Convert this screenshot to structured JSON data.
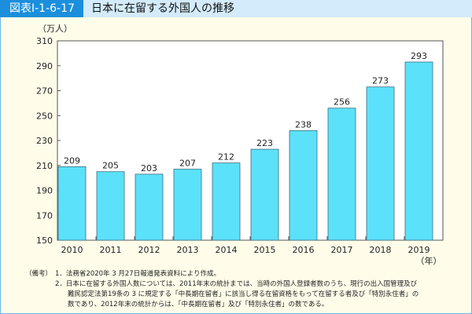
{
  "header": {
    "figure_id": "図表Ⅰ-1-6-17",
    "title": "日本に在留する外国人の推移"
  },
  "chart_data": {
    "type": "bar",
    "title": "日本に在留する外国人の推移",
    "ylabel": "（万人）",
    "xlabel": "（年）",
    "categories": [
      "2010",
      "2011",
      "2012",
      "2013",
      "2014",
      "2015",
      "2016",
      "2017",
      "2018",
      "2019"
    ],
    "values": [
      209,
      205,
      203,
      207,
      212,
      223,
      238,
      256,
      273,
      293
    ],
    "ylim": [
      150,
      310
    ],
    "yticks": [
      150,
      170,
      190,
      210,
      230,
      250,
      270,
      290,
      310
    ],
    "grid": false,
    "bar_color": "#5ce1fb"
  },
  "notes": {
    "label": "（備考）",
    "items": [
      "1．法務省2020年 3 月27日報道発表資料により作成。",
      "2．日本に在留する外国人数については、2011年末の統計までは、当時の外国人登録者数のうち、現行の出入国管理及び",
      "難民認定法第19条の 3 に規定する「中長期在留者」に該当し得る在留資格をもって在留する者及び「特別永住者」の",
      "数であり、2012年末の統計からは、「中長期在留者」及び「特別永住者」の数である。"
    ]
  }
}
